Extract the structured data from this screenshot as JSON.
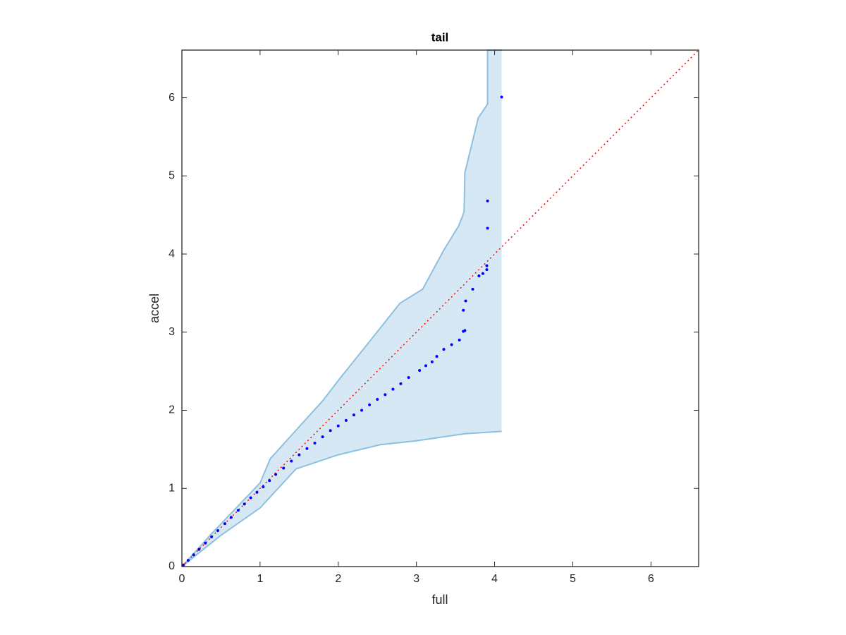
{
  "chart_data": {
    "type": "scatter",
    "title": "tail",
    "xlabel": "full",
    "ylabel": "accel",
    "xlim": [
      0,
      6.61
    ],
    "ylim": [
      0,
      6.61
    ],
    "xticks": [
      0,
      1,
      2,
      3,
      4,
      5,
      6
    ],
    "yticks": [
      0,
      1,
      2,
      3,
      4,
      5,
      6
    ],
    "points": {
      "color": "#0000ff",
      "x": [
        0.02,
        0.08,
        0.15,
        0.22,
        0.3,
        0.38,
        0.46,
        0.55,
        0.63,
        0.72,
        0.8,
        0.88,
        0.96,
        1.04,
        1.12,
        1.2,
        1.3,
        1.4,
        1.5,
        1.6,
        1.7,
        1.8,
        1.9,
        2.0,
        2.1,
        2.2,
        2.3,
        2.4,
        2.5,
        2.6,
        2.7,
        2.8,
        2.9,
        3.04,
        3.12,
        3.2,
        3.26,
        3.35,
        3.45,
        3.55,
        3.6,
        3.62,
        3.6,
        3.63,
        3.72,
        3.8,
        3.85,
        3.9,
        3.9,
        3.91,
        3.91,
        4.09
      ],
      "values": [
        0.02,
        0.08,
        0.15,
        0.22,
        0.3,
        0.38,
        0.46,
        0.55,
        0.63,
        0.72,
        0.8,
        0.88,
        0.95,
        1.02,
        1.1,
        1.18,
        1.26,
        1.35,
        1.43,
        1.51,
        1.58,
        1.66,
        1.74,
        1.8,
        1.87,
        1.94,
        2.0,
        2.07,
        2.14,
        2.2,
        2.27,
        2.34,
        2.42,
        2.51,
        2.57,
        2.62,
        2.69,
        2.78,
        2.84,
        2.9,
        3.01,
        3.02,
        3.28,
        3.4,
        3.55,
        3.72,
        3.75,
        3.8,
        3.85,
        4.33,
        4.68,
        6.01
      ]
    },
    "band": {
      "color": "#d6e8f4",
      "edge_color": "#8dc0e0",
      "upper": {
        "x": [
          0,
          0.38,
          1.0,
          1.13,
          1.8,
          2.0,
          2.36,
          2.79,
          3.08,
          3.35,
          3.54,
          3.61,
          3.62,
          3.79,
          3.91,
          3.91,
          4.09
        ],
        "values": [
          0,
          0.42,
          1.07,
          1.38,
          2.12,
          2.38,
          2.83,
          3.37,
          3.55,
          4.05,
          4.36,
          4.54,
          5.04,
          5.74,
          5.92,
          6.61,
          6.61
        ]
      },
      "lower": {
        "x": [
          0,
          0.5,
          1.0,
          1.46,
          2.0,
          2.54,
          3.0,
          3.62,
          4.09
        ],
        "values": [
          0,
          0.4,
          0.75,
          1.25,
          1.43,
          1.56,
          1.61,
          1.7,
          1.73
        ]
      }
    },
    "reference": {
      "color": "#ff0000",
      "x": [
        0,
        6.61
      ],
      "values": [
        0,
        6.61
      ]
    }
  }
}
